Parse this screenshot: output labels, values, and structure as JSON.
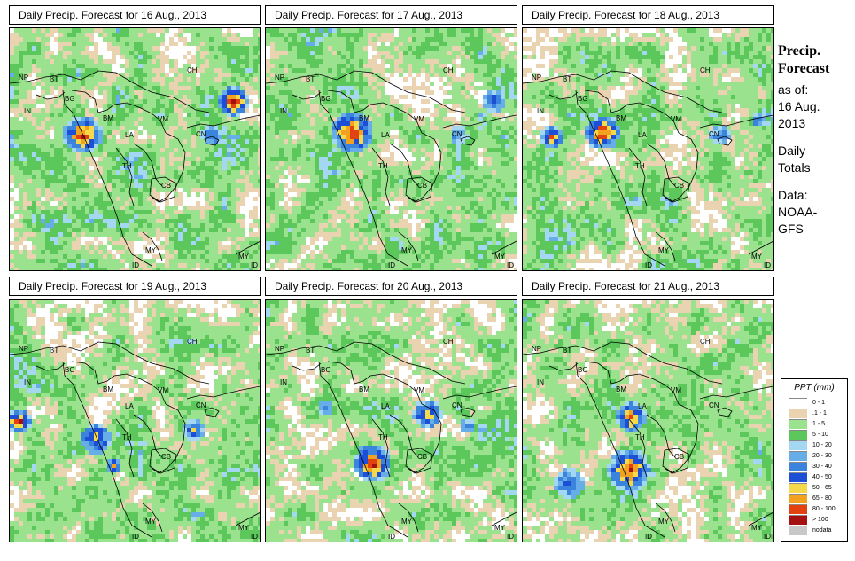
{
  "side_title": {
    "line1": "Precip.",
    "line2": "Forecast"
  },
  "side_info": [
    "as of:",
    "16 Aug.",
    "2013",
    "Daily",
    "Totals",
    "Data:",
    "NOAA-",
    "GFS"
  ],
  "country_labels": [
    "NP",
    "BT",
    "IN",
    "BG",
    "BM",
    "CH",
    "VM",
    "LA",
    "TH",
    "CB",
    "CN",
    "MY",
    "ID"
  ],
  "panels": [
    {
      "title": "Daily Precip. Forecast for  16 Aug., 2013"
    },
    {
      "title": "Daily Precip. Forecast for  17 Aug., 2013"
    },
    {
      "title": "Daily Precip. Forecast for  18 Aug., 2013"
    },
    {
      "title": "Daily Precip. Forecast for  19 Aug., 2013"
    },
    {
      "title": "Daily Precip. Forecast for  20 Aug., 2013"
    },
    {
      "title": "Daily Precip. Forecast for  21 Aug., 2013"
    }
  ],
  "legend": {
    "title": "PPT (mm)",
    "items": [
      {
        "label": "0 - 1",
        "color": "#ffffff"
      },
      {
        "label": ".1 - 1",
        "color": "#ead3b0"
      },
      {
        "label": "1 - 5",
        "color": "#9be28e"
      },
      {
        "label": "5 - 10",
        "color": "#5cc85c"
      },
      {
        "label": "10 - 20",
        "color": "#a4d8f2"
      },
      {
        "label": "20 - 30",
        "color": "#67aee8"
      },
      {
        "label": "30 - 40",
        "color": "#3a84de"
      },
      {
        "label": "40 - 50",
        "color": "#1d4fd6"
      },
      {
        "label": "50 - 65",
        "color": "#f5d94a"
      },
      {
        "label": "65 - 80",
        "color": "#f2a21f"
      },
      {
        "label": "80 - 100",
        "color": "#e2420f"
      },
      {
        "label": "> 100",
        "color": "#a51010"
      },
      {
        "label": "nodata",
        "color": "#c8c8c8"
      }
    ]
  }
}
